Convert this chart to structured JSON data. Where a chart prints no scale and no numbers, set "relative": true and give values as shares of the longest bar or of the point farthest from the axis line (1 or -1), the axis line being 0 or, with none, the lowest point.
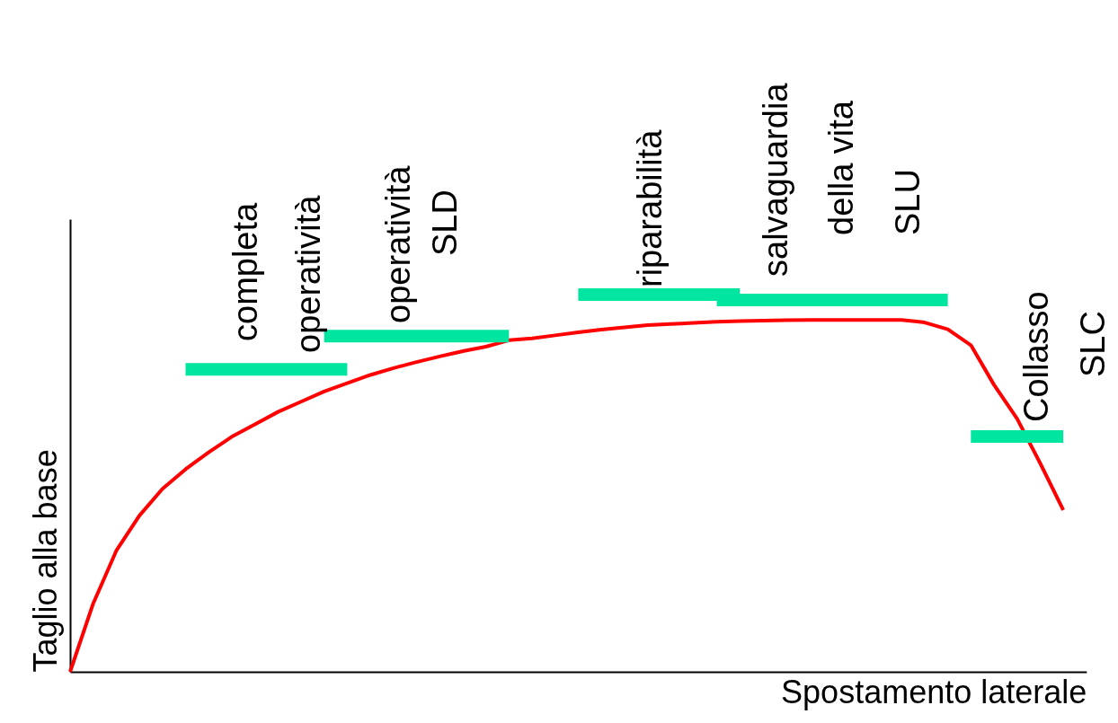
{
  "chart_data": {
    "type": "line",
    "relative": true,
    "xlabel": "Spostamento laterale",
    "ylabel": "Taglio alla base",
    "categories": [
      null,
      null,
      null,
      null,
      null,
      null,
      null,
      null,
      null,
      null,
      null,
      null,
      null,
      null,
      null,
      null,
      null,
      null,
      null,
      null,
      null,
      null,
      null,
      null,
      null,
      null,
      null,
      null,
      null,
      null,
      null,
      null,
      null,
      null,
      null,
      null,
      null,
      null,
      null,
      null,
      null,
      null,
      null,
      null,
      null
    ],
    "series": [
      {
        "color": "#ff0000",
        "values": [
          0,
          0.181,
          0.321,
          0.414,
          0.485,
          0.537,
          0.582,
          0.623,
          0.656,
          0.689,
          0.716,
          0.743,
          0.765,
          0.787,
          0.805,
          0.821,
          0.836,
          0.85,
          0.862,
          0.879,
          0.884,
          0.892,
          0.9,
          0.907,
          0.913,
          0.919,
          0.922,
          0.925,
          0.928,
          0.93,
          0.931,
          0.932,
          0.933,
          0.933,
          0.933,
          0.933,
          0.933,
          0.926,
          0.908,
          0.866,
          0.761,
          0.671,
          0.553,
          0.429,
          null
        ]
      },
      {
        "color": "#00e5a0",
        "values": [
          null,
          null,
          null,
          null,
          null,
          0.802,
          0.802,
          0.802,
          0.802,
          0.802,
          0.802,
          0.802,
          0.802,
          null,
          null,
          null,
          null,
          null,
          null,
          null,
          null,
          null,
          null,
          null,
          null,
          null,
          null,
          null,
          null,
          null,
          null,
          null,
          null,
          null,
          null,
          null,
          null,
          null,
          null,
          null,
          null,
          null,
          null,
          null,
          null
        ]
      },
      {
        "color": "#00e5a0",
        "values": [
          null,
          null,
          null,
          null,
          null,
          null,
          null,
          null,
          null,
          null,
          null,
          0.89,
          0.89,
          0.89,
          0.89,
          0.89,
          0.89,
          0.89,
          0.89,
          0.89,
          null,
          null,
          null,
          null,
          null,
          null,
          null,
          null,
          null,
          null,
          null,
          null,
          null,
          null,
          null,
          null,
          null,
          null,
          null,
          null,
          null,
          null,
          null,
          null,
          null
        ]
      },
      {
        "color": "#00e5a0",
        "values": [
          null,
          null,
          null,
          null,
          null,
          null,
          null,
          null,
          null,
          null,
          null,
          null,
          null,
          null,
          null,
          null,
          null,
          null,
          null,
          null,
          null,
          null,
          1,
          1,
          1,
          1,
          1,
          1,
          1,
          1,
          null,
          null,
          null,
          null,
          null,
          null,
          null,
          null,
          null,
          null,
          null,
          null,
          null,
          null,
          null
        ]
      },
      {
        "color": "#00e5a0",
        "values": [
          null,
          null,
          null,
          null,
          null,
          null,
          null,
          null,
          null,
          null,
          null,
          null,
          null,
          null,
          null,
          null,
          null,
          null,
          null,
          null,
          null,
          null,
          null,
          null,
          null,
          null,
          null,
          null,
          0.986,
          0.986,
          0.986,
          0.986,
          0.986,
          0.986,
          0.986,
          0.986,
          0.986,
          0.986,
          0.986,
          null,
          null,
          null,
          null,
          null,
          null
        ]
      },
      {
        "color": "#00e5a0",
        "values": [
          null,
          null,
          null,
          null,
          null,
          null,
          null,
          null,
          null,
          null,
          null,
          null,
          null,
          null,
          null,
          null,
          null,
          null,
          null,
          null,
          null,
          null,
          null,
          null,
          null,
          null,
          null,
          null,
          null,
          null,
          null,
          null,
          null,
          null,
          null,
          null,
          null,
          null,
          null,
          0.624,
          0.624,
          0.624,
          0.624,
          0.624,
          null
        ]
      }
    ],
    "annotations": [
      "completa",
      "operatività",
      "operatività",
      "SLD",
      "riparabilità",
      "salvaguardia",
      "della vita",
      "SLU",
      "Collasso",
      "SLC"
    ]
  }
}
